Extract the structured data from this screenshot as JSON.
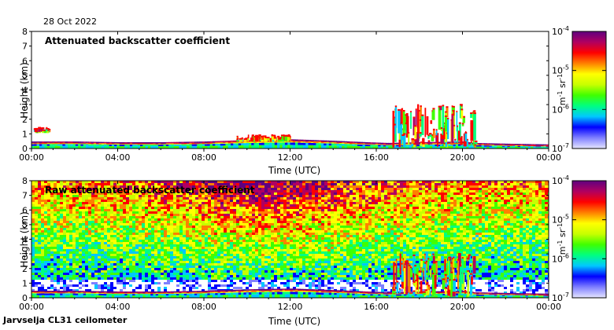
{
  "date": "28 Oct 2022",
  "footer": "Jarvselja CL31 ceilometer",
  "colors": {
    "colormap": [
      "#e6e6ff",
      "#8080ff",
      "#0000ff",
      "#00c8ff",
      "#00ff80",
      "#40ff00",
      "#c8ff00",
      "#ffff00",
      "#ff8000",
      "#ff0000",
      "#b00060",
      "#600080"
    ]
  },
  "chart_data": [
    {
      "type": "heatmap",
      "title": "Attenuated backscatter coefficient",
      "xlabel": "Time (UTC)",
      "ylabel": "Height (km)",
      "x_ticks": [
        "00:00",
        "04:00",
        "08:00",
        "12:00",
        "16:00",
        "20:00",
        "00:00"
      ],
      "y_ticks": [
        "0",
        "1",
        "2",
        "3",
        "4",
        "5",
        "6",
        "7",
        "8"
      ],
      "ylim": [
        0,
        8
      ],
      "colorbar": {
        "scale": "log",
        "ticks": [
          "10",
          "10",
          "10",
          "10"
        ],
        "tick_exponents": [
          "-4",
          "-5",
          "-6",
          "-7"
        ],
        "label": "m",
        "label_exp1": "-1",
        "label_mid": " sr",
        "label_exp2": "-1"
      },
      "boundary_layer_km": [
        [
          0,
          0.4
        ],
        [
          2,
          0.4
        ],
        [
          4,
          0.35
        ],
        [
          6,
          0.35
        ],
        [
          8,
          0.4
        ],
        [
          10,
          0.5
        ],
        [
          12,
          0.55
        ],
        [
          14,
          0.45
        ],
        [
          15.5,
          0.35
        ],
        [
          16.5,
          0.3
        ],
        [
          18,
          0.35
        ],
        [
          20,
          0.4
        ],
        [
          20.5,
          0.3
        ],
        [
          22,
          0.25
        ],
        [
          24,
          0.2
        ]
      ],
      "cloud_features": [
        {
          "t0": 0.1,
          "t1": 0.8,
          "h0": 1.2,
          "h1": 1.4
        },
        {
          "t0": 9.5,
          "t1": 12.0,
          "h0": 0.6,
          "h1": 0.9
        },
        {
          "t0": 16.7,
          "t1": 20.6,
          "h0": 0.2,
          "h1": 3.0
        }
      ]
    },
    {
      "type": "heatmap",
      "title": "Raw attenuated backscatter coefficient",
      "xlabel": "Time (UTC)",
      "ylabel": "Height (km)",
      "x_ticks": [
        "00:00",
        "04:00",
        "08:00",
        "12:00",
        "16:00",
        "20:00",
        "00:00"
      ],
      "y_ticks": [
        "0",
        "1",
        "2",
        "3",
        "4",
        "5",
        "6",
        "7",
        "8"
      ],
      "ylim": [
        0,
        8
      ],
      "colorbar": {
        "scale": "log",
        "ticks": [
          "10",
          "10",
          "10",
          "10"
        ],
        "tick_exponents": [
          "-4",
          "-5",
          "-6",
          "-7"
        ],
        "label": "m",
        "label_exp1": "-1",
        "label_mid": " sr",
        "label_exp2": "-1"
      },
      "boundary_layer_km": [
        [
          0,
          0.4
        ],
        [
          2,
          0.4
        ],
        [
          4,
          0.35
        ],
        [
          6,
          0.35
        ],
        [
          8,
          0.4
        ],
        [
          10,
          0.5
        ],
        [
          12,
          0.55
        ],
        [
          14,
          0.45
        ],
        [
          15.5,
          0.35
        ],
        [
          16.5,
          0.3
        ],
        [
          18,
          0.35
        ],
        [
          20,
          0.4
        ],
        [
          20.5,
          0.3
        ],
        [
          22,
          0.25
        ],
        [
          24,
          0.2
        ]
      ],
      "cloud_features": [
        {
          "t0": 16.7,
          "t1": 20.6,
          "h0": 0.2,
          "h1": 3.0
        }
      ]
    }
  ]
}
